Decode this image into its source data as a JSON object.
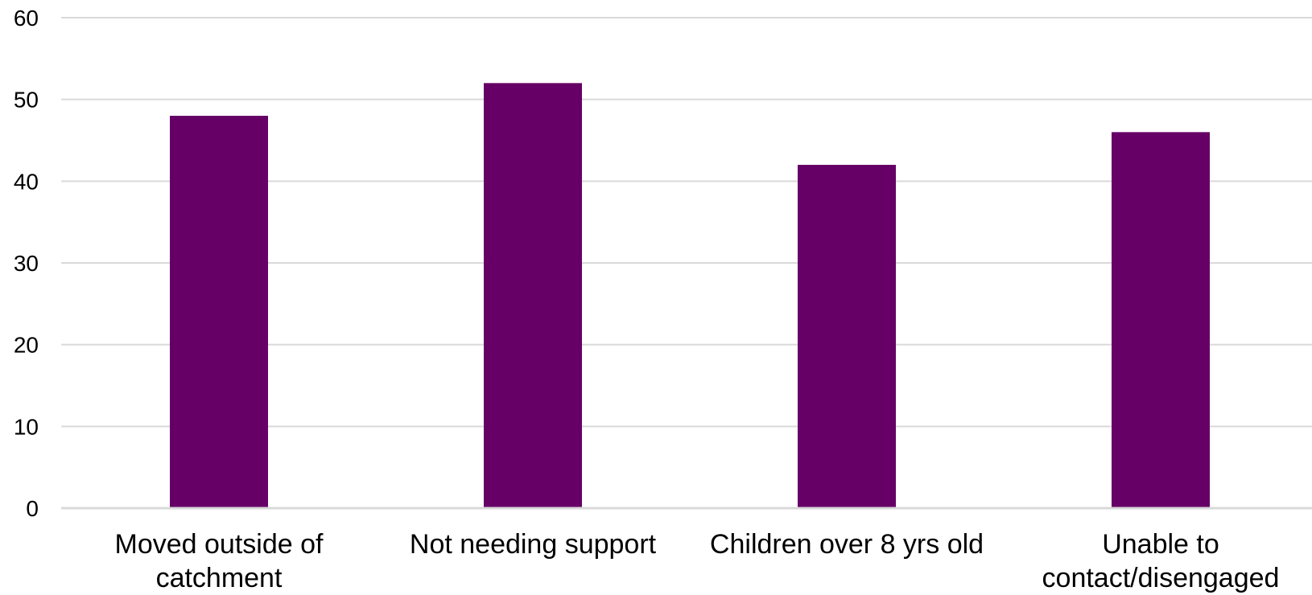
{
  "chart_data": {
    "type": "bar",
    "categories": [
      [
        "Moved outside of",
        "catchment"
      ],
      [
        "Not needing support"
      ],
      [
        "Children over 8 yrs old"
      ],
      [
        "Unable to",
        "contact/disengaged"
      ]
    ],
    "values": [
      48,
      52,
      42,
      46
    ],
    "ylim": [
      0,
      60
    ],
    "yticks": [
      0,
      10,
      20,
      30,
      40,
      50,
      60
    ],
    "grid": true,
    "legend": "none",
    "bar_color": "#660066",
    "grid_color": "#d9d9d9",
    "axis_color": "#d9d9d9"
  }
}
